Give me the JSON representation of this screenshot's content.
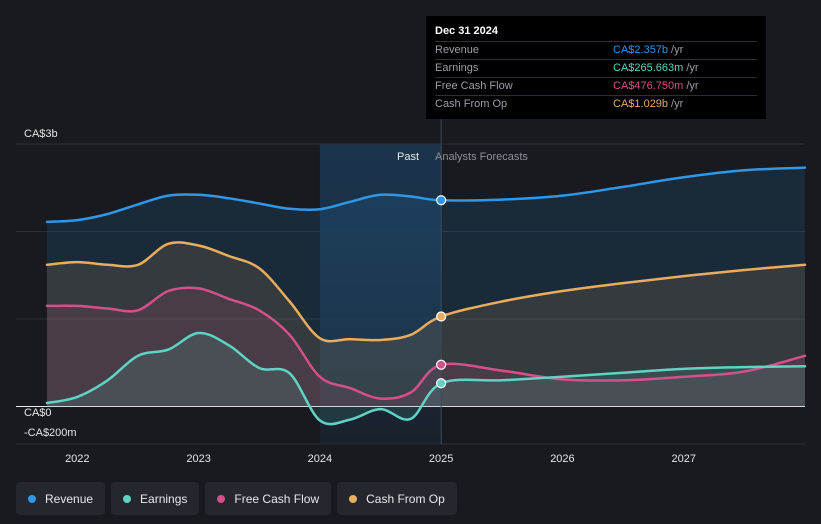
{
  "chart_data": {
    "type": "area",
    "title": "",
    "y_axis": {
      "top_label": "CA$3b",
      "zero_label": "CA$0",
      "bottom_label": "-CA$200m",
      "ylim": [
        -200,
        3000
      ],
      "unit": "CA$ millions"
    },
    "x_ticks": [
      "2022",
      "2023",
      "2024",
      "2025",
      "2026",
      "2027"
    ],
    "x_range": [
      2021.75,
      2028.0
    ],
    "divider_x": 2025.0,
    "past_shade_from": 2024.0,
    "period_labels": {
      "past": "Past",
      "forecast": "Analysts Forecasts"
    },
    "series": [
      {
        "name": "Revenue",
        "color": "#2e97e8",
        "points": [
          [
            2021.75,
            2110
          ],
          [
            2022.0,
            2130
          ],
          [
            2022.25,
            2200
          ],
          [
            2022.5,
            2310
          ],
          [
            2022.75,
            2410
          ],
          [
            2023.0,
            2420
          ],
          [
            2023.25,
            2380
          ],
          [
            2023.5,
            2320
          ],
          [
            2023.75,
            2260
          ],
          [
            2024.0,
            2255
          ],
          [
            2024.25,
            2340
          ],
          [
            2024.5,
            2420
          ],
          [
            2024.75,
            2400
          ],
          [
            2025.0,
            2357
          ],
          [
            2025.5,
            2365
          ],
          [
            2026.0,
            2410
          ],
          [
            2026.5,
            2510
          ],
          [
            2027.0,
            2620
          ],
          [
            2027.5,
            2700
          ],
          [
            2028.0,
            2730
          ]
        ]
      },
      {
        "name": "Cash From Op",
        "color": "#e8ad5e",
        "points": [
          [
            2021.75,
            1620
          ],
          [
            2022.0,
            1650
          ],
          [
            2022.25,
            1620
          ],
          [
            2022.5,
            1620
          ],
          [
            2022.75,
            1860
          ],
          [
            2023.0,
            1840
          ],
          [
            2023.25,
            1720
          ],
          [
            2023.5,
            1580
          ],
          [
            2023.75,
            1200
          ],
          [
            2024.0,
            780
          ],
          [
            2024.25,
            770
          ],
          [
            2024.5,
            760
          ],
          [
            2024.75,
            820
          ],
          [
            2025.0,
            1029
          ],
          [
            2025.5,
            1200
          ],
          [
            2026.0,
            1320
          ],
          [
            2026.5,
            1410
          ],
          [
            2027.0,
            1490
          ],
          [
            2027.5,
            1560
          ],
          [
            2028.0,
            1620
          ]
        ]
      },
      {
        "name": "Free Cash Flow",
        "color": "#d4508a",
        "points": [
          [
            2021.75,
            1150
          ],
          [
            2022.0,
            1150
          ],
          [
            2022.25,
            1120
          ],
          [
            2022.5,
            1100
          ],
          [
            2022.75,
            1320
          ],
          [
            2023.0,
            1350
          ],
          [
            2023.25,
            1230
          ],
          [
            2023.5,
            1100
          ],
          [
            2023.75,
            820
          ],
          [
            2024.0,
            340
          ],
          [
            2024.25,
            210
          ],
          [
            2024.5,
            90
          ],
          [
            2024.75,
            160
          ],
          [
            2025.0,
            476.75
          ],
          [
            2025.5,
            410
          ],
          [
            2026.0,
            310
          ],
          [
            2026.5,
            300
          ],
          [
            2027.0,
            340
          ],
          [
            2027.5,
            400
          ],
          [
            2028.0,
            580
          ]
        ]
      },
      {
        "name": "Earnings",
        "color": "#5fd3c5",
        "points": [
          [
            2021.75,
            40
          ],
          [
            2022.0,
            110
          ],
          [
            2022.25,
            300
          ],
          [
            2022.5,
            580
          ],
          [
            2022.75,
            650
          ],
          [
            2023.0,
            840
          ],
          [
            2023.25,
            700
          ],
          [
            2023.5,
            440
          ],
          [
            2023.75,
            380
          ],
          [
            2024.0,
            -160
          ],
          [
            2024.25,
            -150
          ],
          [
            2024.5,
            -30
          ],
          [
            2024.75,
            -140
          ],
          [
            2025.0,
            265.663
          ],
          [
            2025.5,
            300
          ],
          [
            2026.0,
            340
          ],
          [
            2026.5,
            385
          ],
          [
            2027.0,
            430
          ],
          [
            2027.5,
            450
          ],
          [
            2028.0,
            460
          ]
        ]
      }
    ]
  },
  "tooltip": {
    "date": "Dec 31 2024",
    "rows": [
      {
        "label": "Revenue",
        "value": "CA$2.357b",
        "unit": "/yr",
        "color": "#2e97e8"
      },
      {
        "label": "Earnings",
        "value": "CA$265.663m",
        "unit": "/yr",
        "color": "#5fd3c5"
      },
      {
        "label": "Free Cash Flow",
        "value": "CA$476.750m",
        "unit": "/yr",
        "color": "#d4508a"
      },
      {
        "label": "Cash From Op",
        "value": "CA$1.029b",
        "unit": "/yr",
        "color": "#e8ad5e"
      }
    ]
  },
  "legend": [
    {
      "label": "Revenue",
      "color": "#2e97e8"
    },
    {
      "label": "Earnings",
      "color": "#5fd3c5"
    },
    {
      "label": "Free Cash Flow",
      "color": "#d4508a"
    },
    {
      "label": "Cash From Op",
      "color": "#e8ad5e"
    }
  ]
}
